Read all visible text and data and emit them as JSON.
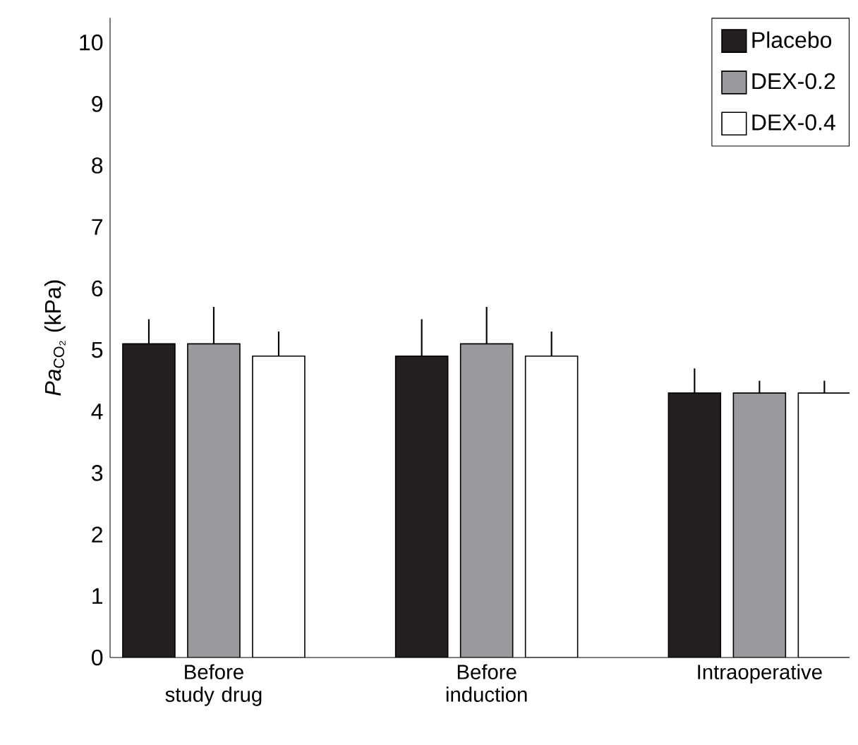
{
  "chart_data": {
    "type": "bar",
    "ylabel": "*Pa*$_{CO₂}$ (kPa)",
    "categories": [
      "Before study drug",
      "Before induction",
      "Intraoperative"
    ],
    "series": [
      {
        "name": "Placebo",
        "color": "#231f20",
        "values": [
          5.1,
          4.9,
          4.3
        ],
        "errors": [
          [
            5.1,
            5.5
          ],
          [
            4.9,
            5.5
          ],
          [
            4.3,
            4.7
          ]
        ]
      },
      {
        "name": "DEX-0.2",
        "color": "#9a9a9e",
        "values": [
          5.1,
          5.1,
          4.3
        ],
        "errors": [
          [
            5.1,
            5.7
          ],
          [
            5.1,
            5.7
          ],
          [
            4.3,
            4.5
          ]
        ]
      },
      {
        "name": "DEX-0.4",
        "color": "#ffffff",
        "values": [
          4.9,
          4.9,
          4.3
        ],
        "errors": [
          [
            4.9,
            5.3
          ],
          [
            4.9,
            5.3
          ],
          [
            4.3,
            4.5
          ]
        ]
      }
    ],
    "ylim": [
      0,
      10.4
    ],
    "yticks": [
      0,
      1,
      2,
      3,
      4,
      5,
      6,
      7,
      8,
      9,
      10
    ],
    "legend": "top right",
    "grid": false
  }
}
